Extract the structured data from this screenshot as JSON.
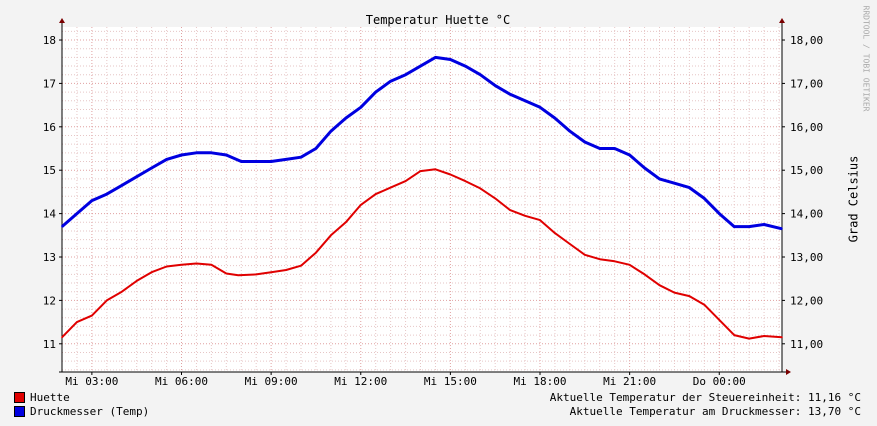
{
  "colors": {
    "background": "#f3f3f3",
    "plot_background": "#ffffff",
    "minor_grid": "#e6c6c6",
    "major_grid": "#e0a0a0",
    "axis": "#000000",
    "arrow": "#7a0000"
  },
  "watermark": "RRDTOOL / TOBI OETIKER",
  "right_axis_label": "Grad Celsius",
  "status": {
    "line1": "Aktuelle Temperatur der Steuereinheit: 11,16 °C",
    "line2": "Aktuelle Temperatur am Druckmesser: 13,70 °C"
  },
  "chart_data": {
    "type": "line",
    "title": "Temperatur Huette °C",
    "xlabel": "",
    "ylabel": "Grad Celsius",
    "ylim": [
      10.35,
      18.3
    ],
    "xlim": [
      2.0,
      26.1
    ],
    "x_tick_labels": [
      {
        "x": 3,
        "label": "Mi 03:00"
      },
      {
        "x": 6,
        "label": "Mi 06:00"
      },
      {
        "x": 9,
        "label": "Mi 09:00"
      },
      {
        "x": 12,
        "label": "Mi 12:00"
      },
      {
        "x": 15,
        "label": "Mi 15:00"
      },
      {
        "x": 18,
        "label": "Mi 18:00"
      },
      {
        "x": 21,
        "label": "Mi 21:00"
      },
      {
        "x": 24,
        "label": "Do 00:00"
      }
    ],
    "y_ticks_left": [
      11,
      12,
      13,
      14,
      15,
      16,
      17,
      18
    ],
    "y_ticks_right": [
      "11,00",
      "12,00",
      "13,00",
      "14,00",
      "15,00",
      "16,00",
      "17,00",
      "18,00"
    ],
    "grid": true,
    "legend_position": "bottom-left",
    "series": [
      {
        "name": "Huette",
        "color": "#e00000",
        "x": [
          2.0,
          2.5,
          3.0,
          3.5,
          4.0,
          4.5,
          5.0,
          5.5,
          6.0,
          6.5,
          7.0,
          7.5,
          7.9,
          8.5,
          9.0,
          9.5,
          10.0,
          10.5,
          11.0,
          11.5,
          12.0,
          12.5,
          13.0,
          13.5,
          14.0,
          14.5,
          15.0,
          15.5,
          16.0,
          16.5,
          17.0,
          17.5,
          18.0,
          18.5,
          19.0,
          19.5,
          20.0,
          20.5,
          21.0,
          21.5,
          22.0,
          22.5,
          23.0,
          23.5,
          24.0,
          24.5,
          25.0,
          25.5,
          26.1
        ],
        "y": [
          11.15,
          11.5,
          11.65,
          12.0,
          12.2,
          12.45,
          12.65,
          12.78,
          12.82,
          12.85,
          12.82,
          12.62,
          12.58,
          12.6,
          12.65,
          12.7,
          12.8,
          13.1,
          13.5,
          13.8,
          14.2,
          14.45,
          14.6,
          14.75,
          14.98,
          15.02,
          14.9,
          14.75,
          14.58,
          14.35,
          14.08,
          13.95,
          13.85,
          13.55,
          13.3,
          13.05,
          12.95,
          12.9,
          12.82,
          12.6,
          12.35,
          12.18,
          12.1,
          11.9,
          11.55,
          11.2,
          11.12,
          11.18,
          11.15
        ]
      },
      {
        "name": "Druckmesser (Temp)",
        "color": "#0000e0",
        "x": [
          2.0,
          2.5,
          3.0,
          3.5,
          4.0,
          4.5,
          5.0,
          5.5,
          6.0,
          6.5,
          7.0,
          7.5,
          8.0,
          8.5,
          9.0,
          9.5,
          10.0,
          10.5,
          11.0,
          11.5,
          12.0,
          12.5,
          13.0,
          13.5,
          14.0,
          14.5,
          15.0,
          15.5,
          16.0,
          16.5,
          17.0,
          17.5,
          18.0,
          18.5,
          19.0,
          19.5,
          20.0,
          20.5,
          21.0,
          21.5,
          22.0,
          22.5,
          23.0,
          23.5,
          24.0,
          24.5,
          25.0,
          25.5,
          26.1
        ],
        "y": [
          13.7,
          14.0,
          14.3,
          14.45,
          14.65,
          14.85,
          15.05,
          15.25,
          15.35,
          15.4,
          15.4,
          15.35,
          15.2,
          15.2,
          15.2,
          15.25,
          15.3,
          15.5,
          15.9,
          16.2,
          16.45,
          16.8,
          17.05,
          17.2,
          17.4,
          17.6,
          17.55,
          17.4,
          17.2,
          16.95,
          16.75,
          16.6,
          16.45,
          16.2,
          15.9,
          15.65,
          15.5,
          15.5,
          15.35,
          15.05,
          14.8,
          14.7,
          14.6,
          14.35,
          14.0,
          13.7,
          13.7,
          13.75,
          13.65
        ]
      }
    ]
  }
}
